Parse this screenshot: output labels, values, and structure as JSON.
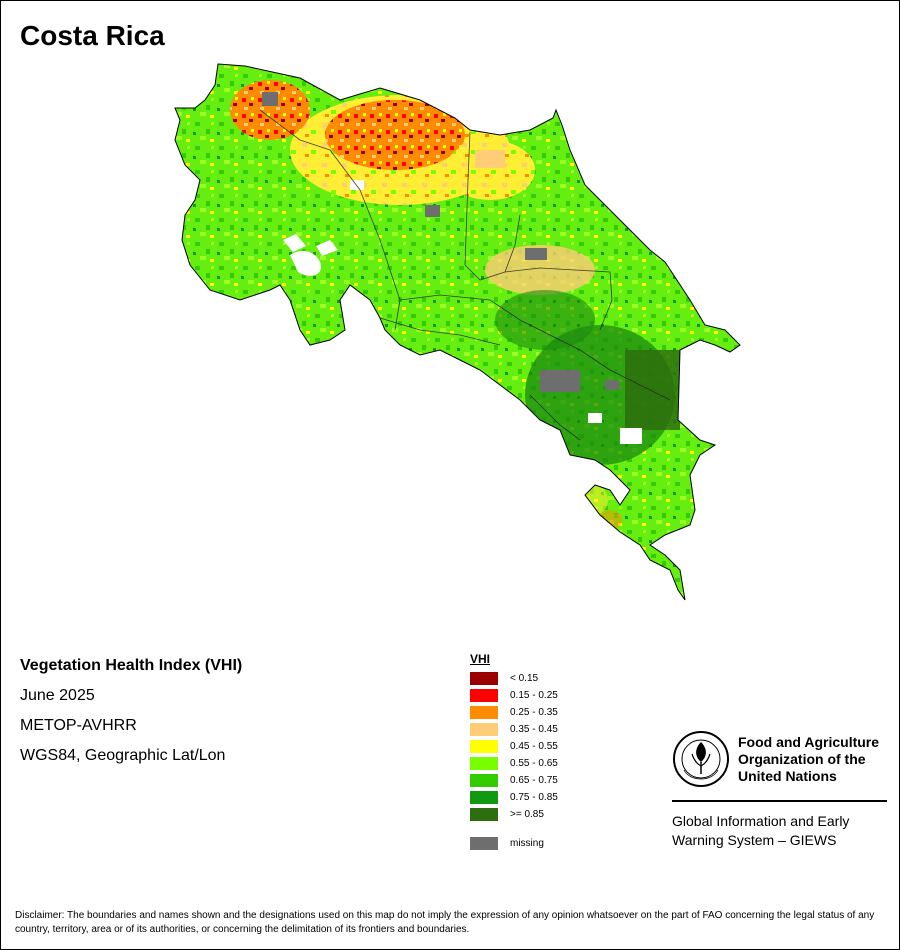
{
  "map": {
    "title": "Costa Rica"
  },
  "info": {
    "heading": "Vegetation Health Index (VHI)",
    "date": "June 2025",
    "sensor": "METOP-AVHRR",
    "projection": "WGS84, Geographic Lat/Lon"
  },
  "legend": {
    "title": "VHI",
    "items": [
      {
        "label": "< 0.15",
        "color": "#9b0000"
      },
      {
        "label": "0.15 - 0.25",
        "color": "#ff0000"
      },
      {
        "label": "0.25 - 0.35",
        "color": "#ff8c00"
      },
      {
        "label": "0.35 - 0.45",
        "color": "#ffcc77"
      },
      {
        "label": "0.45 - 0.55",
        "color": "#ffff00"
      },
      {
        "label": "0.55 - 0.65",
        "color": "#77ff00"
      },
      {
        "label": "0.65 - 0.75",
        "color": "#33cc00"
      },
      {
        "label": "0.75 - 0.85",
        "color": "#119911"
      },
      {
        "label": ">= 0.85",
        "color": "#2d6e0e"
      }
    ],
    "missing": {
      "label": "missing",
      "color": "#6e6e6e"
    }
  },
  "logo": {
    "org_name": "Food and Agriculture Organization of the United Nations",
    "system_name": "Global Information and Early Warning System – GIEWS"
  },
  "disclaimer": "Disclaimer: The boundaries and names shown and the designations used on this map do not imply the expression of any opinion whatsoever on the part of FAO concerning the legal status of any country, territory, area or of its authorities, or concerning the delimitation of its frontiers and boundaries."
}
